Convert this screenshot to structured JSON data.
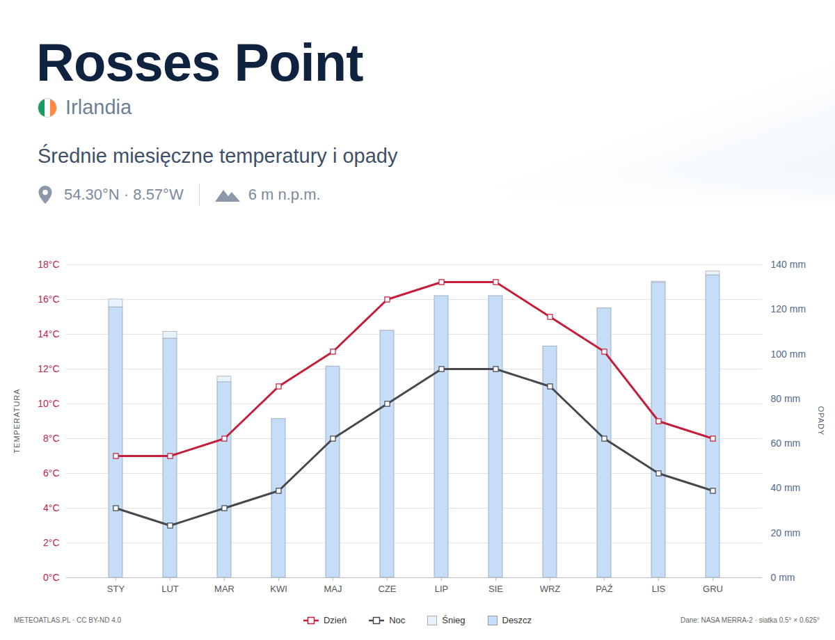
{
  "chart_data": {
    "type": "bar",
    "title": "Rosses Point",
    "subtitle": "Średnie miesięczne temperatury i opady",
    "annotations": [
      "Irlandia",
      "54.30°N · 8.57°W",
      "6 m n.p.m.",
      "METEOATLAS.PL · CC BY-ND 4.0",
      "Dane: NASA MERRA-2 · siatka 0.5° × 0.625°"
    ],
    "ylabel": "TEMPERATURA",
    "y2label": "OPADY",
    "categories": [
      "STY",
      "LUT",
      "MAR",
      "KWI",
      "MAJ",
      "CZE",
      "LIP",
      "SIE",
      "WRZ",
      "PAŹ",
      "LIS",
      "GRU"
    ],
    "series": [
      {
        "name": "Dzień",
        "type": "line",
        "color": "#c41e3a",
        "marker": "square",
        "values": [
          7,
          7,
          8,
          11,
          13,
          16,
          17,
          17,
          15,
          13,
          9,
          8
        ]
      },
      {
        "name": "Noc",
        "type": "line",
        "color": "#46484d",
        "marker": "square",
        "values": [
          4,
          3,
          4,
          5,
          8,
          10,
          12,
          12,
          11,
          8,
          6,
          5
        ]
      },
      {
        "name": "Śnieg",
        "type": "bar",
        "axis": "y2",
        "color": "#e8f2fc",
        "values": [
          3.5,
          3,
          2.5,
          0,
          0,
          0,
          0,
          0,
          0,
          0,
          0.5,
          1.7
        ]
      },
      {
        "name": "Deszcz",
        "type": "bar",
        "axis": "y2",
        "color": "#c6ddf7",
        "values": [
          121,
          107,
          87.5,
          71,
          94.5,
          110.5,
          126,
          126,
          103.5,
          120.5,
          132,
          135.3
        ]
      }
    ],
    "stacked": true,
    "ylim": [
      0,
      18
    ],
    "yticks": [
      {
        "value": 0,
        "label": "0°C"
      },
      {
        "value": 2,
        "label": "2°C"
      },
      {
        "value": 4,
        "label": "4°C"
      },
      {
        "value": 6,
        "label": "6°C"
      },
      {
        "value": 8,
        "label": "8°C"
      },
      {
        "value": 10,
        "label": "10°C"
      },
      {
        "value": 12,
        "label": "12°C"
      },
      {
        "value": 14,
        "label": "14°C"
      },
      {
        "value": 16,
        "label": "16°C"
      },
      {
        "value": 18,
        "label": "18°C"
      }
    ],
    "y2lim": [
      0,
      140
    ],
    "y2ticks": [
      {
        "value": 0,
        "label": "0 mm"
      },
      {
        "value": 20,
        "label": "20 mm"
      },
      {
        "value": 40,
        "label": "40 mm"
      },
      {
        "value": 60,
        "label": "60 mm"
      },
      {
        "value": 80,
        "label": "80 mm"
      },
      {
        "value": 100,
        "label": "100 mm"
      },
      {
        "value": 120,
        "label": "120 mm"
      },
      {
        "value": 140,
        "label": "140 mm"
      }
    ],
    "grid": true,
    "legend": "bottom"
  }
}
